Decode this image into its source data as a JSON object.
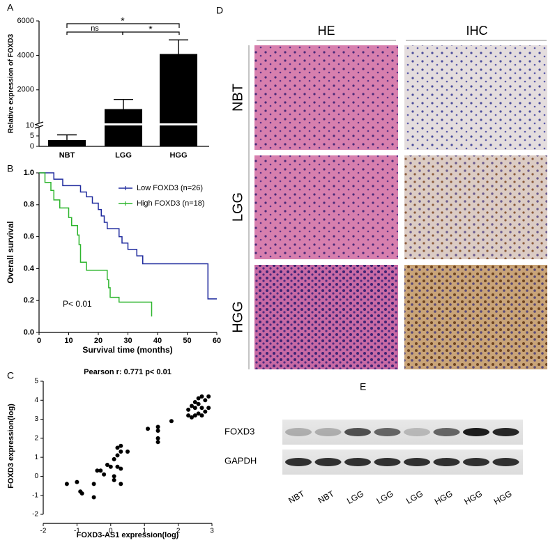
{
  "panel_labels": [
    "A",
    "B",
    "C",
    "D",
    "E"
  ],
  "chart_data": [
    {
      "type": "bar",
      "ylabel": "Relative expression of FOXD3",
      "categories": [
        "NBT",
        "LGG",
        "HGG"
      ],
      "values": [
        3,
        880,
        4080
      ],
      "errors": [
        2.5,
        560,
        820
      ],
      "color": "#000000",
      "ylim_lower": [
        0,
        10
      ],
      "ylim_upper": [
        10,
        6000
      ],
      "yticks": [
        0,
        5,
        10,
        2000,
        4000,
        6000
      ],
      "annotations": [
        "ns",
        "*",
        "*"
      ]
    },
    {
      "type": "line",
      "xlabel": "Survival time (months)",
      "ylabel": "Overall survival",
      "xlim": [
        0,
        60
      ],
      "xticks": [
        0,
        10,
        20,
        30,
        40,
        50,
        60
      ],
      "ylim": [
        0,
        1
      ],
      "yticks": [
        {
          "value": 0,
          "label": "0.0"
        },
        {
          "value": 0.2,
          "label": "0.2"
        },
        {
          "value": 0.4,
          "label": "0.4"
        },
        {
          "value": 0.6,
          "label": "0.6"
        },
        {
          "value": 0.8,
          "label": "0.8"
        },
        {
          "value": 1,
          "label": "1.0"
        }
      ],
      "annotation": "P< 0.01",
      "legend": "upper right",
      "series": [
        {
          "name": "Low FOXD3 (n=26)",
          "color": "#1f2a9e",
          "x": [
            0,
            5,
            8,
            14,
            16,
            18,
            20,
            21,
            22,
            23,
            27,
            28,
            30,
            33,
            35,
            57,
            60
          ],
          "values": [
            1,
            0.96,
            0.92,
            0.88,
            0.85,
            0.81,
            0.77,
            0.73,
            0.69,
            0.65,
            0.6,
            0.56,
            0.52,
            0.48,
            0.43,
            0.21,
            0.21
          ]
        },
        {
          "name": "High FOXD3 (n=18)",
          "color": "#2db52d",
          "x": [
            0,
            2,
            4,
            5,
            7,
            10,
            11,
            13,
            13.5,
            14,
            16,
            23,
            23.5,
            24,
            27,
            38
          ],
          "values": [
            1,
            0.94,
            0.89,
            0.83,
            0.78,
            0.72,
            0.67,
            0.61,
            0.55,
            0.44,
            0.39,
            0.33,
            0.28,
            0.22,
            0.19,
            0.1
          ]
        }
      ]
    },
    {
      "type": "scatter",
      "title": "Pearson r: 0.771   p< 0.01",
      "xlabel": "FOXD3-AS1 expression(log)",
      "ylabel": "FOXD3 expression(log)",
      "xlim": [
        -2,
        3
      ],
      "xticks": [
        -2,
        -1,
        0,
        1,
        2,
        3
      ],
      "ylim": [
        -2,
        5
      ],
      "yticks": [
        -2,
        -1,
        0,
        1,
        2,
        3,
        4,
        5
      ],
      "color": "#000000",
      "x": [
        -1.3,
        -1.0,
        -0.9,
        -0.85,
        -0.5,
        -0.5,
        -0.2,
        0.1,
        -0.4,
        -0.3,
        -0.1,
        0,
        0.2,
        0.3,
        0.1,
        0.2,
        0.3,
        0.2,
        0.3,
        0.5,
        0.1,
        0.3,
        1.1,
        1.4,
        1.4,
        1.4,
        1.4,
        1.8,
        2.3,
        2.4,
        2.5,
        2.6,
        2.7,
        2.8,
        2.9,
        2.5,
        2.6,
        2.7,
        2.8,
        2.4,
        2.9,
        2.6,
        2.7,
        2.3,
        2.5
      ],
      "values": [
        -0.4,
        -0.3,
        -0.8,
        -0.9,
        -1.1,
        -0.4,
        0.1,
        0,
        0.3,
        0.3,
        0.6,
        0.5,
        0.5,
        0.4,
        0.9,
        1.1,
        1.3,
        1.5,
        1.6,
        1.3,
        -0.2,
        -0.4,
        2.5,
        2.6,
        2.4,
        2.0,
        1.8,
        2.9,
        3.5,
        3.7,
        3.9,
        3.8,
        3.6,
        4.0,
        4.2,
        3.2,
        3.3,
        3.2,
        3.4,
        3.1,
        3.6,
        4.1,
        4.2,
        3.2,
        3.6
      ]
    }
  ],
  "panel_d": {
    "columns": [
      "HE",
      "IHC"
    ],
    "rows": [
      "NBT",
      "LGG",
      "HGG"
    ]
  },
  "panel_e": {
    "bands": [
      "FOXD3",
      "GAPDH"
    ],
    "lanes": [
      "NBT",
      "NBT",
      "LGG",
      "LGG",
      "LGG",
      "HGG",
      "HGG",
      "HGG"
    ]
  }
}
